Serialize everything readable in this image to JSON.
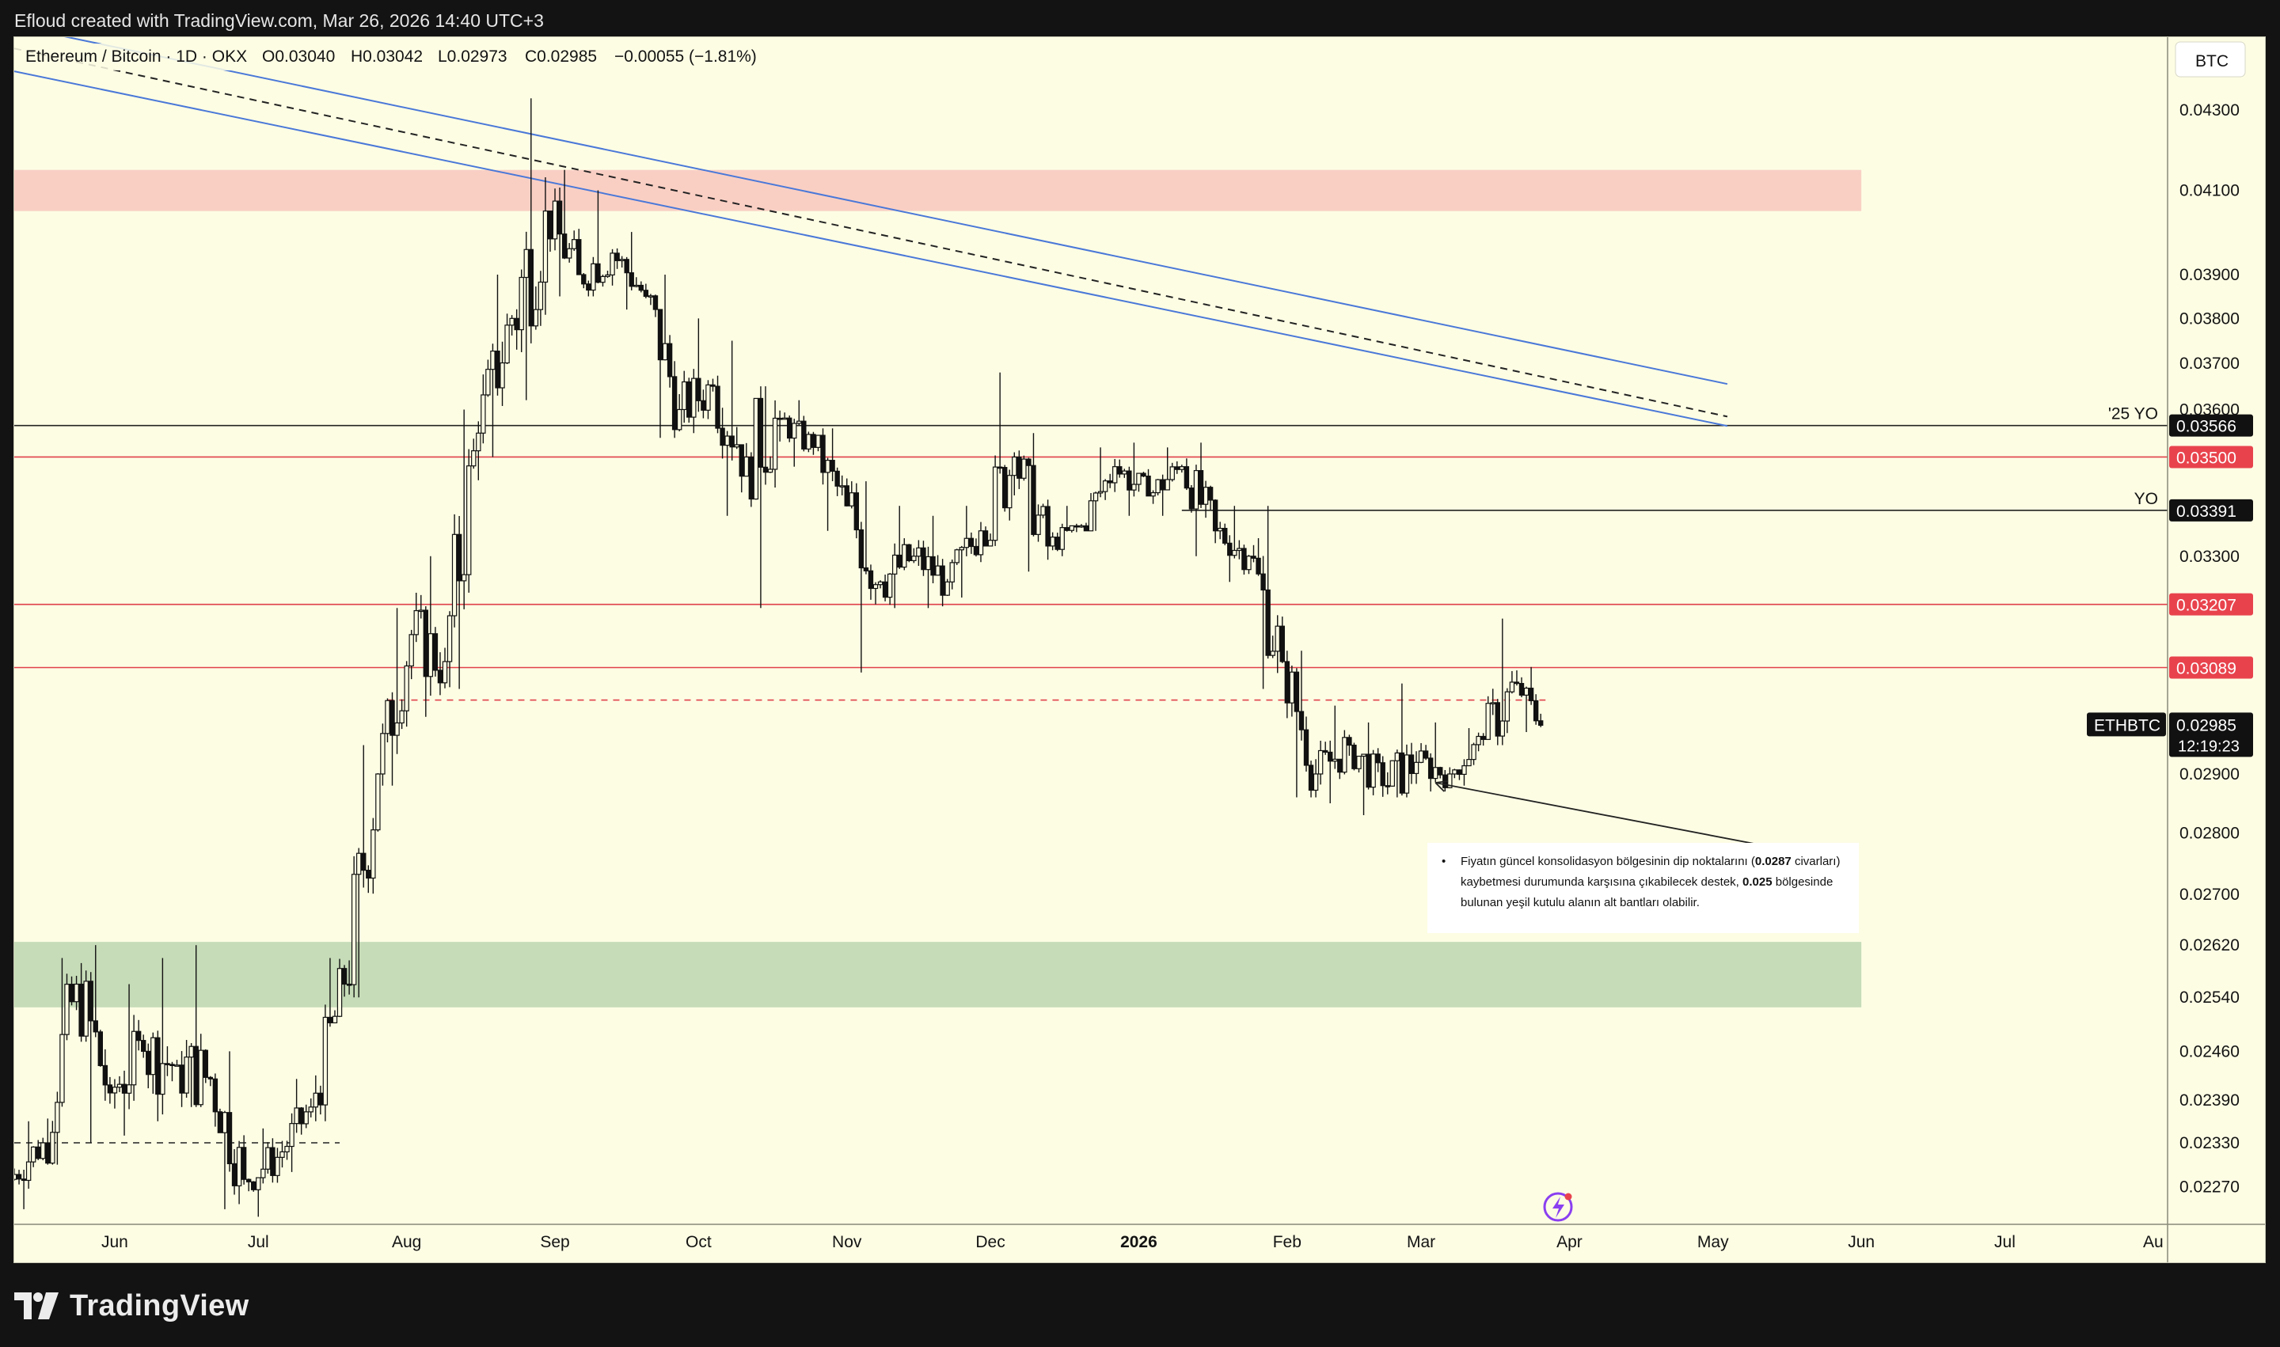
{
  "header": {
    "caption": "Efloud created with TradingView.com, Mar 26, 2026 14:40 UTC+3"
  },
  "footer": {
    "brand": "TradingView"
  },
  "legend": {
    "symbol": "Ethereum / Bitcoin · 1D · OKX",
    "open": "O0.03040",
    "high": "H0.03042",
    "low": "L0.02973",
    "close": "C0.02985",
    "change": "−0.00055 (−1.81%)"
  },
  "currency": "BTC",
  "annotation": {
    "bullet": "•",
    "line1_pre": "Fiyatın güncel konsolidasyon bölgesinin dip noktalarını (",
    "line1_bold": "0.0287",
    "line1_post": " civarları)",
    "line2_pre": "kaybetmesi durumunda karşısına çıkabilecek destek, ",
    "line2_bold": "0.025",
    "line2_post": " bölgesinde",
    "line3": "bulunan yeşil kutulu alanın alt bantları olabilir."
  },
  "colors": {
    "background": "#fdfde4",
    "candle": "#111111",
    "red_line": "#e0404a",
    "black_line": "#222222",
    "channel": "#4a78d8",
    "resistance_zone": "#f9cfc4",
    "support_zone": "#c6dcb8",
    "price_badge": "#111111",
    "red_badge": "#e8434d"
  },
  "chart_data": {
    "type": "candlestick",
    "title": "Ethereum / Bitcoin · 1D · OKX",
    "x_axis_labels": [
      "Jun",
      "Jul",
      "Aug",
      "Sep",
      "Oct",
      "Nov",
      "Dec",
      "2026",
      "Feb",
      "Mar",
      "Apr",
      "May",
      "Jun",
      "Jul",
      "Au"
    ],
    "y_axis_ticks": [
      "0.04300",
      "0.04100",
      "0.03900",
      "0.03800",
      "0.03700",
      "0.03600",
      "0.03300",
      "0.02900",
      "0.02800",
      "0.02700",
      "0.02620",
      "0.02540",
      "0.02460",
      "0.02390",
      "0.02330",
      "0.02270"
    ],
    "scale": "log",
    "ylim": [
      0.0222,
      0.0449
    ],
    "xlim": [
      "2025-05-11",
      "2026-08-04"
    ],
    "horizontal_levels": [
      {
        "price": 0.03566,
        "label": "0.03566",
        "tag": "'25 YO",
        "color": "black"
      },
      {
        "price": 0.035,
        "label": "0.03500",
        "color": "red"
      },
      {
        "price": 0.03391,
        "label": "0.03391",
        "tag": "YO",
        "color": "black"
      },
      {
        "price": 0.03207,
        "label": "0.03207",
        "color": "red"
      },
      {
        "price": 0.03089,
        "label": "0.03089",
        "color": "red"
      },
      {
        "price": 0.0303,
        "label": "",
        "color": "red",
        "style": "dashed"
      },
      {
        "price": 0.0233,
        "label": "",
        "color": "black",
        "style": "dashed"
      }
    ],
    "zones": [
      {
        "name": "resistance",
        "from": 0.0405,
        "to": 0.0415
      },
      {
        "name": "support",
        "from": 0.02525,
        "to": 0.02625
      }
    ],
    "last_price": {
      "symbol": "ETHBTC",
      "price": "0.02985",
      "countdown": "12:19:23"
    },
    "candles": [
      {
        "date": "2025-05-11",
        "o": 0.0228,
        "h": 0.0236,
        "l": 0.0224,
        "c": 0.0233
      },
      {
        "date": "2025-05-18",
        "o": 0.0233,
        "h": 0.026,
        "l": 0.023,
        "c": 0.0256
      },
      {
        "date": "2025-05-25",
        "o": 0.0256,
        "h": 0.0262,
        "l": 0.0233,
        "c": 0.024
      },
      {
        "date": "2025-06-01",
        "o": 0.024,
        "h": 0.0256,
        "l": 0.0234,
        "c": 0.0246
      },
      {
        "date": "2025-06-08",
        "o": 0.0246,
        "h": 0.026,
        "l": 0.0236,
        "c": 0.0244
      },
      {
        "date": "2025-06-15",
        "o": 0.0244,
        "h": 0.0262,
        "l": 0.0238,
        "c": 0.0242
      },
      {
        "date": "2025-06-22",
        "o": 0.0242,
        "h": 0.0246,
        "l": 0.0224,
        "c": 0.0228
      },
      {
        "date": "2025-06-29",
        "o": 0.0228,
        "h": 0.0235,
        "l": 0.0223,
        "c": 0.0231
      },
      {
        "date": "2025-07-06",
        "o": 0.0231,
        "h": 0.0242,
        "l": 0.0229,
        "c": 0.0238
      },
      {
        "date": "2025-07-13",
        "o": 0.0238,
        "h": 0.026,
        "l": 0.0236,
        "c": 0.0256
      },
      {
        "date": "2025-07-20",
        "o": 0.0256,
        "h": 0.0295,
        "l": 0.0254,
        "c": 0.029
      },
      {
        "date": "2025-07-27",
        "o": 0.029,
        "h": 0.032,
        "l": 0.0288,
        "c": 0.0315
      },
      {
        "date": "2025-08-03",
        "o": 0.0315,
        "h": 0.033,
        "l": 0.03,
        "c": 0.031
      },
      {
        "date": "2025-08-10",
        "o": 0.031,
        "h": 0.036,
        "l": 0.0305,
        "c": 0.0355
      },
      {
        "date": "2025-08-17",
        "o": 0.0355,
        "h": 0.039,
        "l": 0.035,
        "c": 0.038
      },
      {
        "date": "2025-08-24",
        "o": 0.038,
        "h": 0.0433,
        "l": 0.0362,
        "c": 0.0405
      },
      {
        "date": "2025-08-31",
        "o": 0.0405,
        "h": 0.0415,
        "l": 0.0385,
        "c": 0.039
      },
      {
        "date": "2025-09-07",
        "o": 0.039,
        "h": 0.041,
        "l": 0.0385,
        "c": 0.0395
      },
      {
        "date": "2025-09-14",
        "o": 0.0395,
        "h": 0.04,
        "l": 0.0382,
        "c": 0.0385
      },
      {
        "date": "2025-09-21",
        "o": 0.0385,
        "h": 0.039,
        "l": 0.0354,
        "c": 0.036
      },
      {
        "date": "2025-09-28",
        "o": 0.036,
        "h": 0.038,
        "l": 0.0355,
        "c": 0.0365
      },
      {
        "date": "2025-10-05",
        "o": 0.0365,
        "h": 0.0375,
        "l": 0.0338,
        "c": 0.035
      },
      {
        "date": "2025-10-12",
        "o": 0.035,
        "h": 0.0365,
        "l": 0.032,
        "c": 0.0358
      },
      {
        "date": "2025-10-19",
        "o": 0.0358,
        "h": 0.0362,
        "l": 0.0348,
        "c": 0.0352
      },
      {
        "date": "2025-10-26",
        "o": 0.0352,
        "h": 0.0356,
        "l": 0.0335,
        "c": 0.034
      },
      {
        "date": "2025-11-02",
        "o": 0.034,
        "h": 0.0345,
        "l": 0.0308,
        "c": 0.0325
      },
      {
        "date": "2025-11-09",
        "o": 0.0325,
        "h": 0.034,
        "l": 0.032,
        "c": 0.033
      },
      {
        "date": "2025-11-16",
        "o": 0.033,
        "h": 0.0338,
        "l": 0.032,
        "c": 0.0325
      },
      {
        "date": "2025-11-23",
        "o": 0.0325,
        "h": 0.034,
        "l": 0.0322,
        "c": 0.0335
      },
      {
        "date": "2025-11-30",
        "o": 0.0335,
        "h": 0.0368,
        "l": 0.0332,
        "c": 0.035
      },
      {
        "date": "2025-12-07",
        "o": 0.035,
        "h": 0.0355,
        "l": 0.0327,
        "c": 0.0332
      },
      {
        "date": "2025-12-14",
        "o": 0.0332,
        "h": 0.034,
        "l": 0.033,
        "c": 0.0336
      },
      {
        "date": "2025-12-21",
        "o": 0.0336,
        "h": 0.0352,
        "l": 0.0335,
        "c": 0.0348
      },
      {
        "date": "2025-12-28",
        "o": 0.0348,
        "h": 0.0353,
        "l": 0.0338,
        "c": 0.0342
      },
      {
        "date": "2026-01-04",
        "o": 0.0342,
        "h": 0.0352,
        "l": 0.0338,
        "c": 0.0348
      },
      {
        "date": "2026-01-11",
        "o": 0.0348,
        "h": 0.0353,
        "l": 0.033,
        "c": 0.0335
      },
      {
        "date": "2026-01-18",
        "o": 0.0335,
        "h": 0.034,
        "l": 0.0325,
        "c": 0.033
      },
      {
        "date": "2026-01-25",
        "o": 0.033,
        "h": 0.034,
        "l": 0.0305,
        "c": 0.031
      },
      {
        "date": "2026-02-01",
        "o": 0.031,
        "h": 0.0312,
        "l": 0.0286,
        "c": 0.029
      },
      {
        "date": "2026-02-08",
        "o": 0.029,
        "h": 0.0302,
        "l": 0.0285,
        "c": 0.0295
      },
      {
        "date": "2026-02-15",
        "o": 0.0295,
        "h": 0.0299,
        "l": 0.0283,
        "c": 0.0288
      },
      {
        "date": "2026-02-22",
        "o": 0.0288,
        "h": 0.0306,
        "l": 0.0286,
        "c": 0.0292
      },
      {
        "date": "2026-03-01",
        "o": 0.0292,
        "h": 0.0299,
        "l": 0.0287,
        "c": 0.029
      },
      {
        "date": "2026-03-08",
        "o": 0.029,
        "h": 0.0298,
        "l": 0.0288,
        "c": 0.0296
      },
      {
        "date": "2026-03-15",
        "o": 0.0296,
        "h": 0.0318,
        "l": 0.0295,
        "c": 0.0306
      },
      {
        "date": "2026-03-22",
        "o": 0.0306,
        "h": 0.0309,
        "l": 0.02973,
        "c": 0.02985
      }
    ]
  }
}
